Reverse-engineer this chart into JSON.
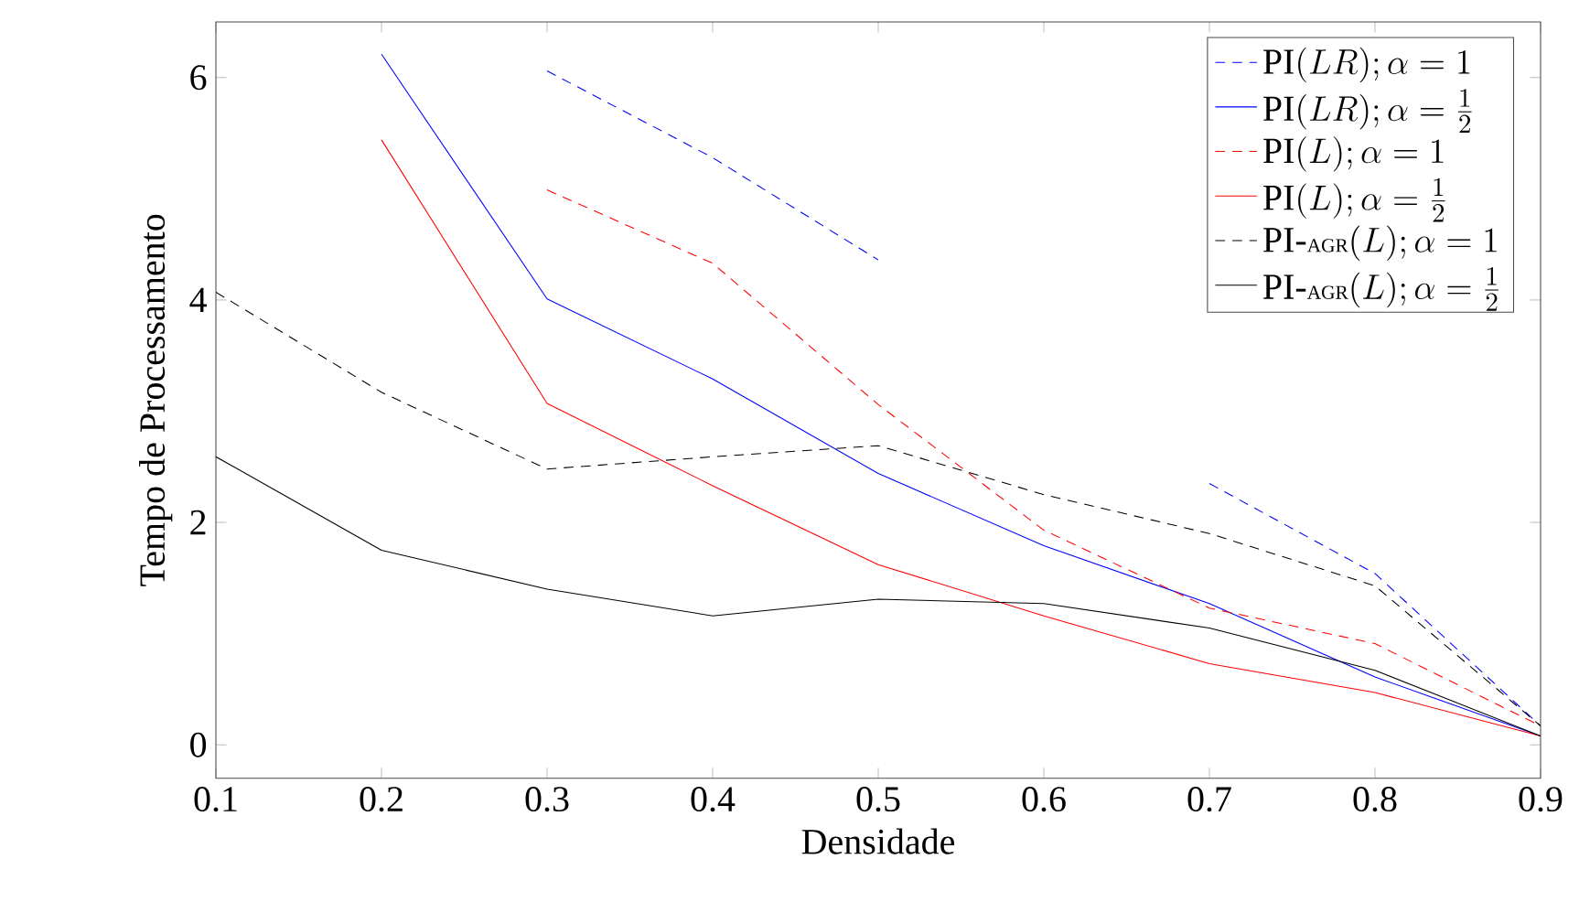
{
  "chart_data": {
    "type": "line",
    "xlabel": "Densidade",
    "ylabel": "Tempo de Processamento",
    "x": [
      0.1,
      0.2,
      0.3,
      0.4,
      0.5,
      0.6,
      0.7,
      0.8,
      0.9
    ],
    "xlim": [
      0.1,
      0.9
    ],
    "ylim": [
      -0.3,
      6.5
    ],
    "xticks": [
      0.1,
      0.2,
      0.3,
      0.4,
      0.5,
      0.6,
      0.7,
      0.8,
      0.9
    ],
    "yticks": [
      0,
      2,
      4,
      6
    ],
    "legend": "top right",
    "grid": false,
    "marker": "none",
    "series": [
      {
        "name": "\\mathrm{PI}(LR);\\alpha=1",
        "color": "#0000ff",
        "line_style": "dashed",
        "values": [
          null,
          null,
          6.06,
          5.28,
          4.36,
          null,
          2.35,
          1.54,
          0.17
        ]
      },
      {
        "name": "\\mathrm{PI}(LR);\\alpha=\\frac{1}{2}",
        "color": "#0000ff",
        "line_style": "solid",
        "values": [
          null,
          6.21,
          4.01,
          3.29,
          2.44,
          1.79,
          1.27,
          0.61,
          0.08
        ]
      },
      {
        "name": "\\mathrm{PI}(L);\\alpha=1",
        "color": "#ff0000",
        "line_style": "dashed",
        "values": [
          null,
          null,
          4.99,
          4.33,
          3.06,
          1.93,
          1.23,
          0.91,
          0.17
        ]
      },
      {
        "name": "\\mathrm{PI}(L);\\alpha=\\frac{1}{2}",
        "color": "#ff0000",
        "line_style": "solid",
        "values": [
          null,
          5.44,
          3.07,
          2.33,
          1.62,
          1.16,
          0.73,
          0.47,
          0.08
        ]
      },
      {
        "name": "\\mathrm{PI}\\mbox{-}\\mbox{\\footnotesize AGR}(L);\\alpha=1",
        "color": "#000000",
        "line_style": "dashed",
        "values": [
          4.07,
          3.17,
          2.48,
          2.59,
          2.69,
          2.25,
          1.9,
          1.43,
          0.17
        ]
      },
      {
        "name": "\\mathrm{PI}\\mbox{-}\\mbox{\\footnotesize AGR}(L);\\alpha=\\frac{1}{2}",
        "color": "#000000",
        "line_style": "solid",
        "values": [
          2.59,
          1.75,
          1.4,
          1.16,
          1.31,
          1.27,
          1.05,
          0.67,
          0.08
        ]
      }
    ]
  }
}
